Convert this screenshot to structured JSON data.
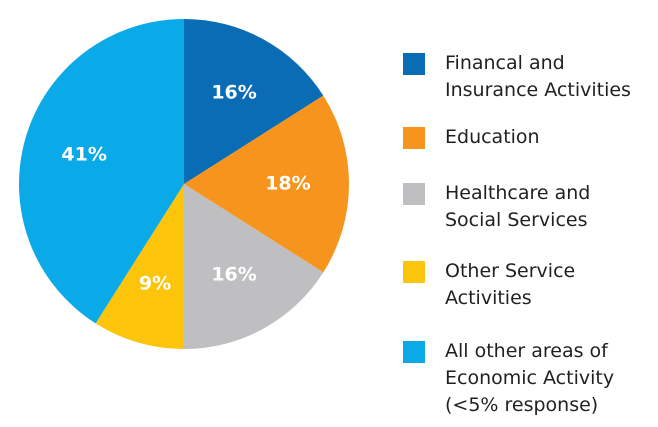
{
  "chart_data": {
    "type": "pie",
    "categories": [
      "Financal and\nInsurance Activities",
      "Education",
      "Healthcare and\nSocial Services",
      "Other Service\nActivities",
      "All other areas of\nEconomic Activity\n(<5% response)"
    ],
    "values": [
      16,
      18,
      16,
      9,
      41
    ],
    "value_labels": [
      "16%",
      "18%",
      "16%",
      "9%",
      "41%"
    ],
    "colors": [
      "#0b6cb6",
      "#f7941d",
      "#bfbfc1",
      "#fdc40c",
      "#0aa9e8"
    ],
    "legend": "right"
  }
}
